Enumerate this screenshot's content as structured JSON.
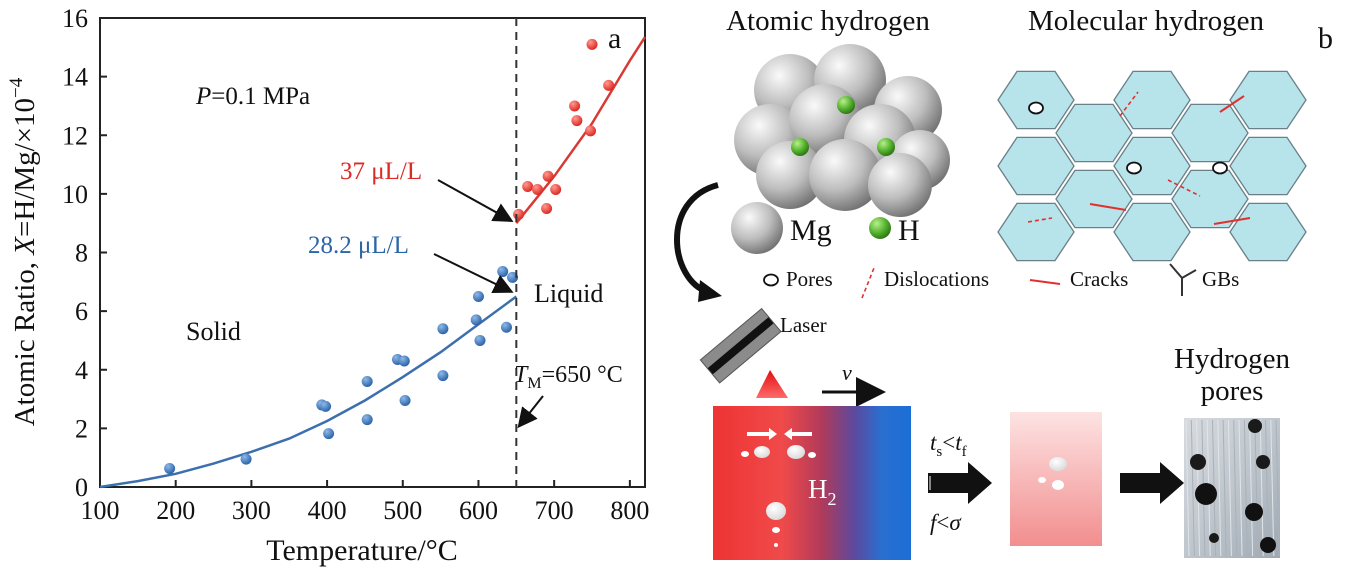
{
  "panel_a": {
    "label": "a",
    "pressure": {
      "sym": "P",
      "text": "=0.1 MPa"
    },
    "region_solid": "Solid",
    "region_liquid": "Liquid",
    "melt": {
      "sym": "T",
      "sub": "M",
      "text": "=650 °C"
    },
    "annot_liquid": "37 μL/L",
    "annot_solid": "28.2 μL/L",
    "colors": {
      "solid": "#2c65a8",
      "liquid": "#dc2a24",
      "fit_solid": "#3b6fae",
      "fit_liquid": "#d83a33"
    }
  },
  "chart_data": {
    "type": "scatter",
    "xlabel": "Temperature/°C",
    "ylabel": "Atomic Ratio, X=H/Mg/×10⁻⁴",
    "xlim": [
      100,
      820
    ],
    "ylim": [
      0,
      16
    ],
    "xticks": [
      "100",
      "200",
      "300",
      "400",
      "500",
      "600",
      "700",
      "800"
    ],
    "yticks": [
      "0",
      "2",
      "4",
      "6",
      "8",
      "10",
      "12",
      "14",
      "16"
    ],
    "melting_point": 650,
    "series": [
      {
        "role": "solid",
        "points": [
          [
            192,
            0.63
          ],
          [
            293,
            0.95
          ],
          [
            393,
            2.8
          ],
          [
            398,
            2.75
          ],
          [
            402,
            1.82
          ],
          [
            453,
            3.6
          ],
          [
            453,
            2.3
          ],
          [
            493,
            4.35
          ],
          [
            502,
            4.3
          ],
          [
            503,
            2.95
          ],
          [
            553,
            5.4
          ],
          [
            553,
            3.8
          ],
          [
            597,
            5.7
          ],
          [
            600,
            6.5
          ],
          [
            602,
            5.0
          ],
          [
            632,
            7.35
          ],
          [
            637,
            5.45
          ],
          [
            645,
            7.15
          ]
        ],
        "fit": [
          [
            100,
            0.0
          ],
          [
            150,
            0.2
          ],
          [
            200,
            0.45
          ],
          [
            250,
            0.8
          ],
          [
            300,
            1.2
          ],
          [
            350,
            1.65
          ],
          [
            400,
            2.25
          ],
          [
            450,
            2.95
          ],
          [
            500,
            3.75
          ],
          [
            550,
            4.6
          ],
          [
            600,
            5.55
          ],
          [
            650,
            6.5
          ]
        ]
      },
      {
        "role": "liquid",
        "points": [
          [
            653,
            9.3
          ],
          [
            665,
            10.25
          ],
          [
            678,
            10.15
          ],
          [
            690,
            9.5
          ],
          [
            692,
            10.6
          ],
          [
            702,
            10.15
          ],
          [
            727,
            13.0
          ],
          [
            730,
            12.5
          ],
          [
            748,
            12.15
          ],
          [
            750,
            15.1
          ],
          [
            772,
            13.7
          ]
        ],
        "fit": [
          [
            650,
            9.0
          ],
          [
            700,
            10.6
          ],
          [
            750,
            12.4
          ],
          [
            800,
            14.55
          ],
          [
            820,
            15.35
          ]
        ]
      }
    ]
  },
  "panel_b": {
    "label": "b",
    "title_atomic": "Atomic hydrogen",
    "title_molecular": "Molecular hydrogen",
    "legend_mg": "Mg",
    "legend_h": "H",
    "legend_pores": "Pores",
    "legend_dislocations": "Dislocations",
    "legend_cracks": "Cracks",
    "legend_gbs": "GBs",
    "laser": "Laser",
    "velocity": "v",
    "h2": {
      "sym": "H",
      "sub": "2"
    },
    "condition1": {
      "a": "t",
      "a_sub": "s",
      "op": "<",
      "b": "t",
      "b_sub": "f"
    },
    "condition2": {
      "a": "f",
      "op": "<",
      "b": "σ"
    },
    "hydrogen_pores_line1": "Hydrogen",
    "hydrogen_pores_line2": "pores"
  }
}
